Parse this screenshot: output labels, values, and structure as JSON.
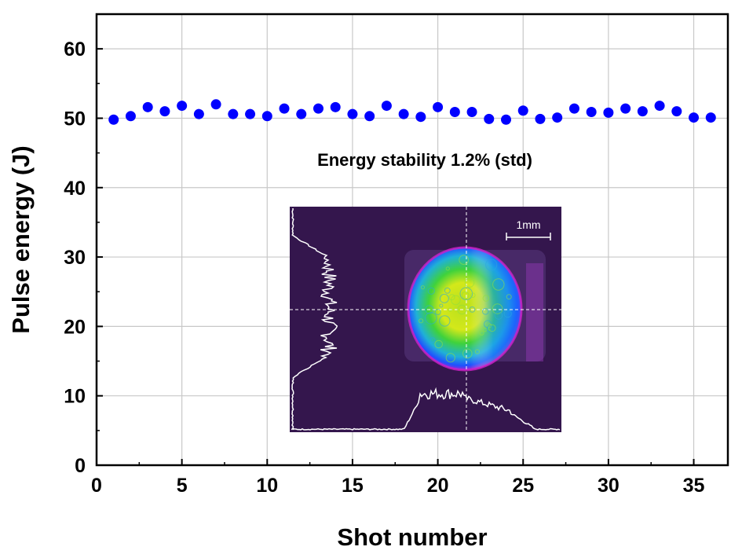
{
  "chart_data": {
    "type": "scatter",
    "title": "",
    "xlabel": "Shot number",
    "ylabel": "Pulse energy (J)",
    "xlim": [
      0,
      37
    ],
    "ylim": [
      0,
      65
    ],
    "xticks": [
      0,
      5,
      10,
      15,
      20,
      25,
      30,
      35
    ],
    "yticks": [
      0,
      10,
      20,
      30,
      40,
      50,
      60
    ],
    "grid": true,
    "marker_color": "#0000ff",
    "series": [
      {
        "name": "Pulse energy",
        "x": [
          1,
          2,
          3,
          4,
          5,
          6,
          7,
          8,
          9,
          10,
          11,
          12,
          13,
          14,
          15,
          16,
          17,
          18,
          19,
          20,
          21,
          22,
          23,
          24,
          25,
          26,
          27,
          28,
          29,
          30,
          31,
          32,
          33,
          34,
          35,
          36
        ],
        "y": [
          49.8,
          50.3,
          51.6,
          51.0,
          51.8,
          50.6,
          52.0,
          50.6,
          50.6,
          50.3,
          51.4,
          50.6,
          51.4,
          51.6,
          50.6,
          50.3,
          51.8,
          50.6,
          50.2,
          51.6,
          50.9,
          50.9,
          49.9,
          49.8,
          51.1,
          49.9,
          50.1,
          51.4,
          50.9,
          50.8,
          51.4,
          51.0,
          51.8,
          51.0,
          50.1,
          50.1
        ]
      }
    ],
    "annotation": "Energy stability 1.2% (std)",
    "inset": {
      "description_label": "beam-profile-image",
      "scale_bar_label": "1mm"
    }
  }
}
